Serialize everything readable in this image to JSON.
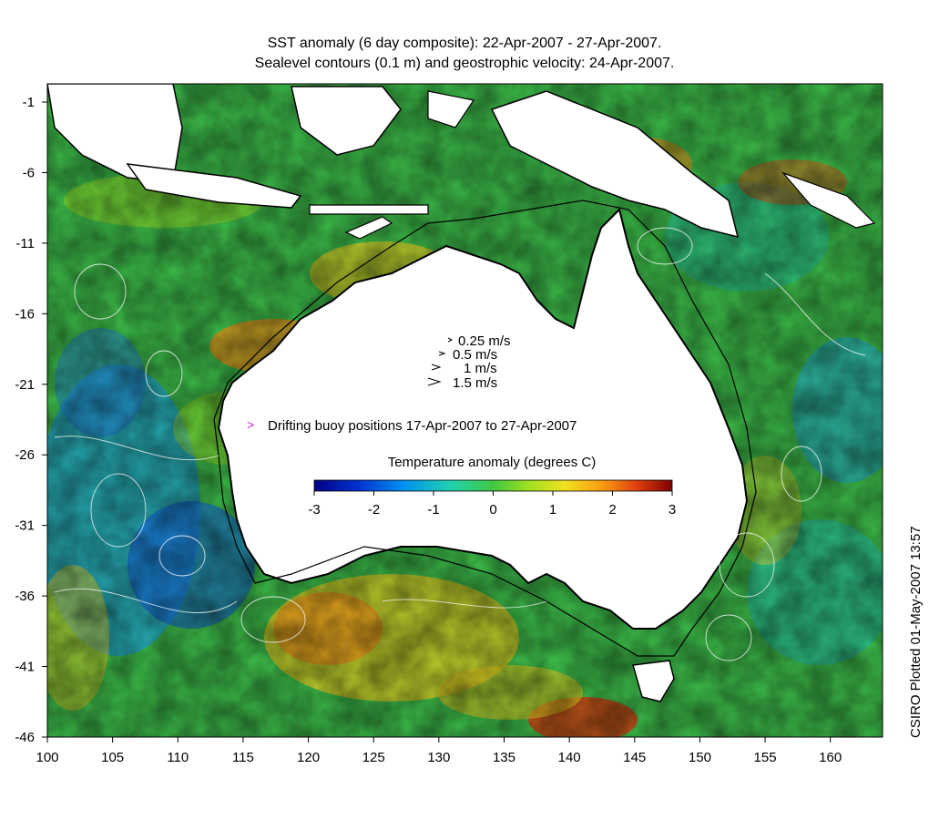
{
  "title_line1": "SST anomaly (6 day composite): 22-Apr-2007 - 27-Apr-2007.",
  "title_line2": "Sealevel contours (0.1 m) and geostrophic velocity: 24-Apr-2007.",
  "x_ticks": [
    "100",
    "105",
    "110",
    "115",
    "120",
    "125",
    "130",
    "135",
    "140",
    "145",
    "150",
    "155",
    "160"
  ],
  "y_ticks": [
    "-1",
    "-6",
    "-11",
    "-16",
    "-21",
    "-26",
    "-31",
    "-36",
    "-41",
    "-46"
  ],
  "velocity_scale": [
    "0.25 m/s",
    "0.5 m/s",
    "1 m/s",
    "1.5 m/s"
  ],
  "buoy_legend": "Drifting buoy positions 17-Apr-2007 to 27-Apr-2007",
  "buoy_marker": ">",
  "colorbar_title": "Temperature anomaly (degrees C)",
  "colorbar_ticks": [
    "-3",
    "-2",
    "-1",
    "0",
    "1",
    "2",
    "3"
  ],
  "credit": "CSIRO Plotted 01-May-2007 13:57",
  "colors": {
    "ocean_base": "#3dbf4a",
    "land": "#ffffff",
    "buoy": "#d020d0",
    "colormap": [
      "#000080",
      "#0030d0",
      "#0090f0",
      "#20d0b0",
      "#40c840",
      "#a0e020",
      "#f0e020",
      "#f8a010",
      "#e04010",
      "#800000"
    ]
  }
}
